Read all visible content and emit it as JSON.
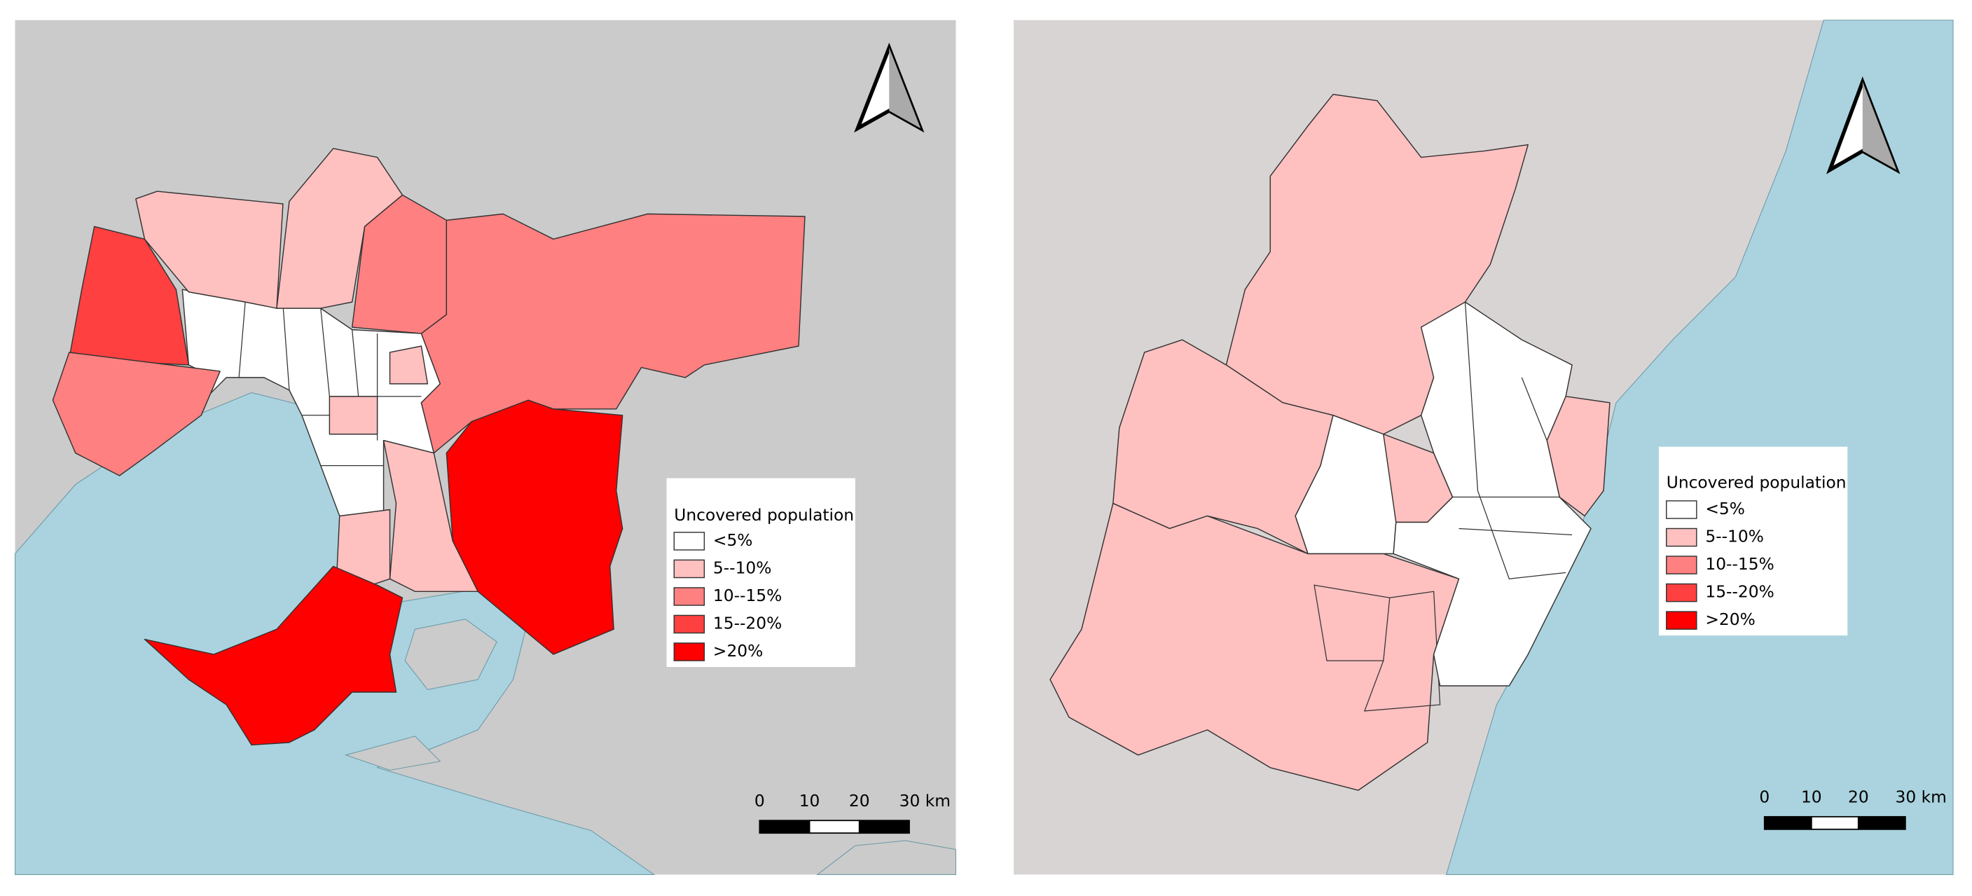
{
  "maps": [
    {
      "legend": {
        "title": "Uncovered population",
        "items": [
          {
            "label": "<5%",
            "color": "#ffffff"
          },
          {
            "label": "5--10%",
            "color": "#ffc0c0"
          },
          {
            "label": "10--15%",
            "color": "#ff8080"
          },
          {
            "label": "15--20%",
            "color": "#ff4040"
          },
          {
            "label": ">20%",
            "color": "#ff0000"
          }
        ]
      },
      "scale_bar": [
        "0",
        "10",
        "20",
        "30 km"
      ]
    },
    {
      "legend": {
        "title": "Uncovered population",
        "items": [
          {
            "label": "<5%",
            "color": "#ffffff"
          },
          {
            "label": "5--10%",
            "color": "#ffc0c0"
          },
          {
            "label": "10--15%",
            "color": "#ff8080"
          },
          {
            "label": "15--20%",
            "color": "#ff4040"
          },
          {
            "label": ">20%",
            "color": "#ff0000"
          }
        ]
      },
      "scale_bar": [
        "0",
        "10",
        "20",
        "30 km"
      ]
    }
  ]
}
